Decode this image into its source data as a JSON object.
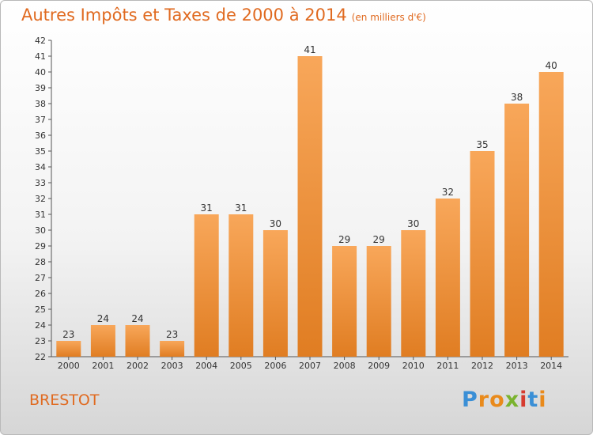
{
  "title": "Autres Impôts et Taxes de 2000 à 2014",
  "subtitle": "(en milliers d'€)",
  "commune": "BRESTOT",
  "logo": {
    "text": "Proxiti",
    "letters": [
      "P",
      "r",
      "o",
      "x",
      "i",
      "t",
      "i"
    ],
    "colors": [
      "#3a8fd6",
      "#e98a1b",
      "#e98a1b",
      "#7ab32e",
      "#d63b2f",
      "#3a8fd6",
      "#e98a1b"
    ]
  },
  "colors": {
    "bar_light": "#f8a75a",
    "bar_dark": "#e07d22",
    "title": "#e06a20"
  },
  "chart_data": {
    "type": "bar",
    "categories": [
      "2000",
      "2001",
      "2002",
      "2003",
      "2004",
      "2005",
      "2006",
      "2007",
      "2008",
      "2009",
      "2010",
      "2011",
      "2012",
      "2013",
      "2014"
    ],
    "values": [
      23,
      24,
      24,
      23,
      31,
      31,
      30,
      41,
      29,
      29,
      30,
      32,
      35,
      38,
      40
    ],
    "title": "Autres Impôts et Taxes de 2000 à 2014",
    "subtitle": "(en milliers d'€)",
    "xlabel": "",
    "ylabel": "",
    "ylim": [
      22,
      42
    ],
    "yticks": [
      22,
      23,
      24,
      25,
      26,
      27,
      28,
      29,
      30,
      31,
      32,
      33,
      34,
      35,
      36,
      37,
      38,
      39,
      40,
      41,
      42
    ],
    "grid": false,
    "legend": "none"
  }
}
